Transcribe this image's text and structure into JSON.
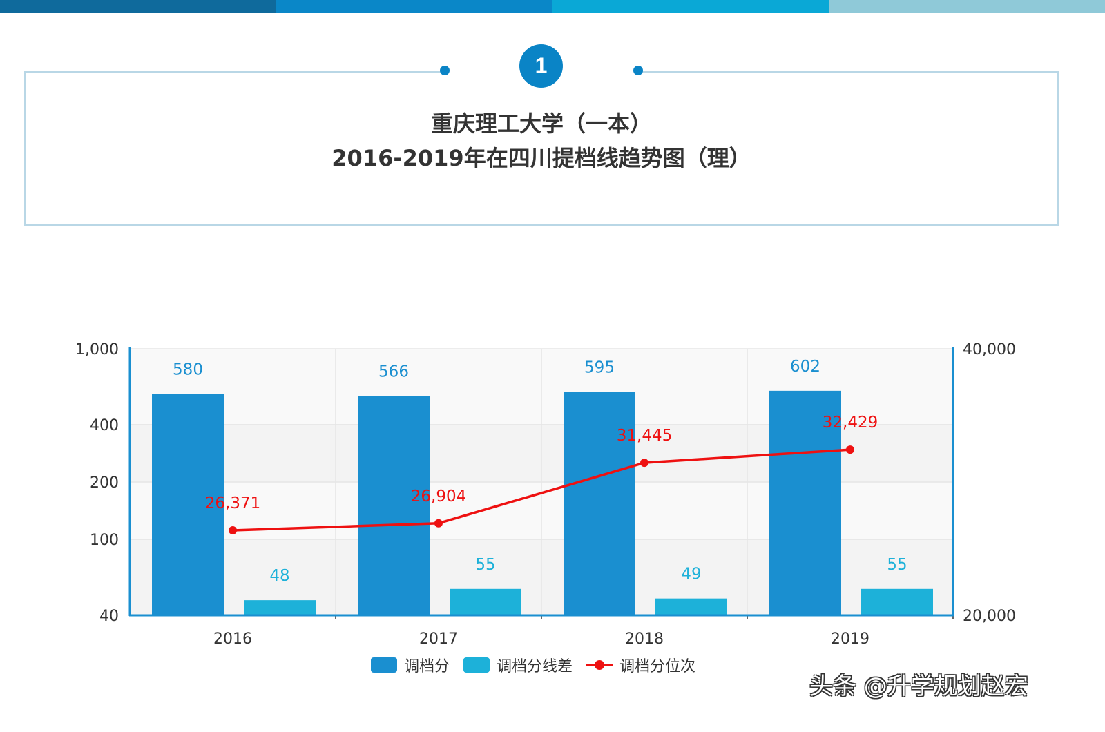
{
  "header": {
    "badge_number": "1",
    "title_line1": "重庆理工大学（一本）",
    "title_line2": "2016-2019年在四川提档线趋势图（理）",
    "top_bar_colors": [
      "#0f6a9c",
      "#0a87c8",
      "#0aa8d6",
      "#8fc9d8"
    ]
  },
  "chart_data": {
    "type": "bar",
    "categories": [
      "2016",
      "2017",
      "2018",
      "2019"
    ],
    "series": [
      {
        "name": "调档分",
        "type": "bar",
        "axis": "left",
        "color": "#1a8fd0",
        "values": [
          580,
          566,
          595,
          602
        ],
        "labels": [
          "580",
          "566",
          "595",
          "602"
        ]
      },
      {
        "name": "调档分线差",
        "type": "bar",
        "axis": "left",
        "color": "#1db1d9",
        "values": [
          48,
          55,
          49,
          55
        ],
        "labels": [
          "48",
          "55",
          "49",
          "55"
        ]
      },
      {
        "name": "调档分位次",
        "type": "line",
        "axis": "right",
        "color": "#ee1111",
        "values": [
          26371,
          26904,
          31445,
          32429
        ],
        "labels": [
          "26,371",
          "26,904",
          "31,445",
          "32,429"
        ]
      }
    ],
    "y_left": {
      "scale": "log",
      "range": [
        40,
        1000
      ],
      "ticks": [
        40,
        100,
        200,
        400,
        1000
      ],
      "tick_labels": [
        "40",
        "100",
        "200",
        "400",
        "1,000"
      ]
    },
    "y_right": {
      "scale": "linear",
      "range": [
        20000,
        40000
      ],
      "ticks": [
        20000,
        40000
      ],
      "tick_labels": [
        "20,000",
        "40,000"
      ]
    },
    "grid": true,
    "legend_position": "bottom"
  },
  "watermark": "头条 @升学规划赵宏"
}
